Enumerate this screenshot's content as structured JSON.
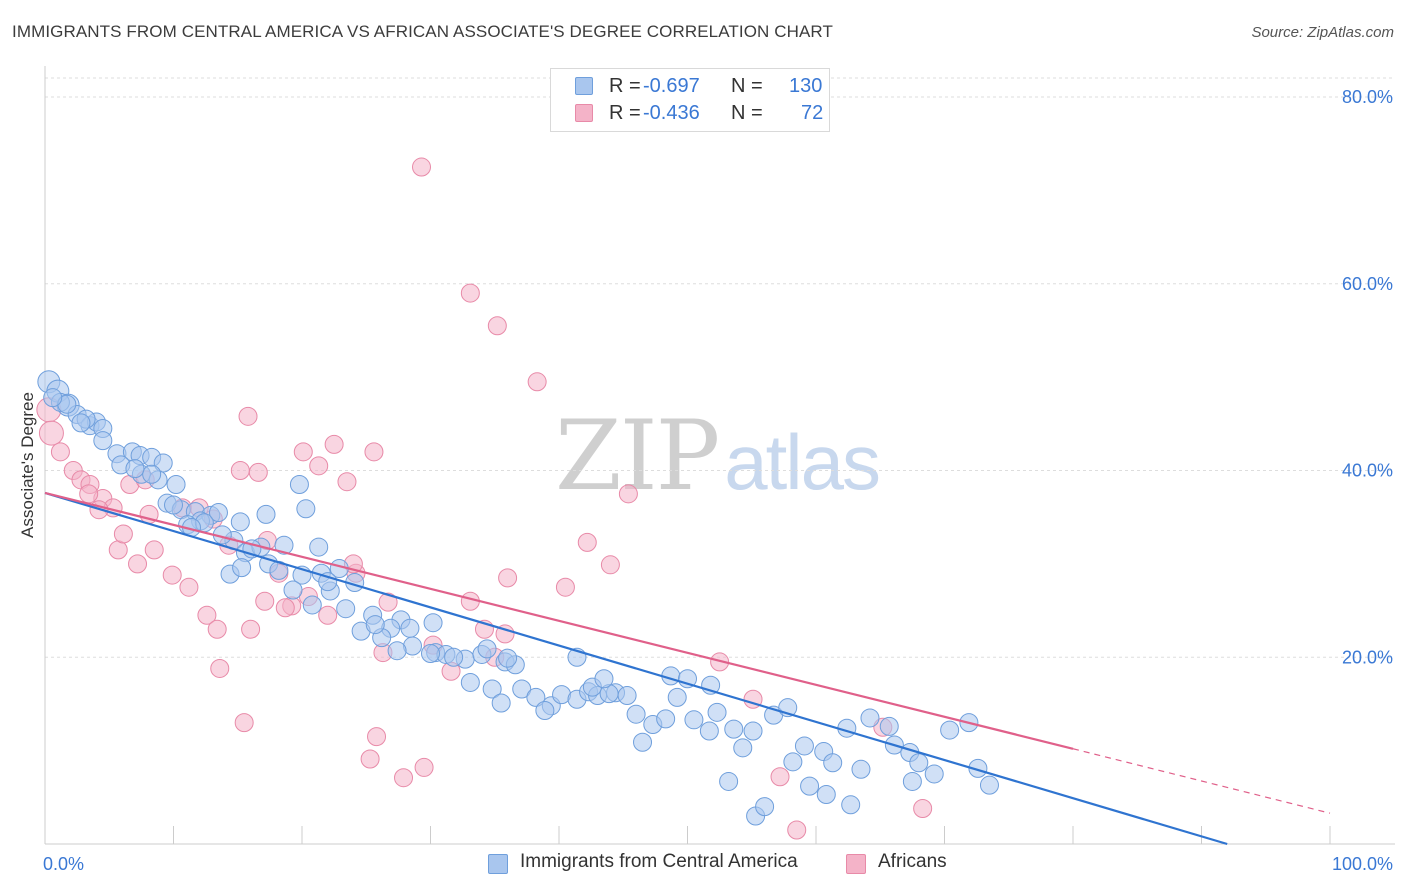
{
  "header": {
    "title": "IMMIGRANTS FROM CENTRAL AMERICA VS AFRICAN ASSOCIATE'S DEGREE CORRELATION CHART",
    "source": "Source: ZipAtlas.com"
  },
  "watermark": {
    "zip": "ZIP",
    "atlas": "atlas"
  },
  "legend_top": {
    "rows": [
      {
        "r_label": "R =",
        "r_value": "-0.697",
        "n_label": "N =",
        "n_value": "130",
        "color": "#a9c6ee"
      },
      {
        "r_label": "R =",
        "r_value": "-0.436",
        "n_label": "N =",
        "n_value": "72",
        "color": "#f4b3c8"
      }
    ]
  },
  "legend_bottom": {
    "items": [
      {
        "label": "Immigrants from Central America",
        "color": "#a9c6ee"
      },
      {
        "label": "Africans",
        "color": "#f4b3c8"
      }
    ]
  },
  "colors": {
    "blue_fill": "#a9c6ee",
    "blue_stroke": "#6f9fdc",
    "blue_line": "#2f74d0",
    "pink_fill": "#f4b3c8",
    "pink_stroke": "#e88aa8",
    "pink_line": "#e0608a",
    "grid": "#dddddd",
    "axis_text": "#3a78d4"
  },
  "chart_data": {
    "type": "scatter",
    "title": "IMMIGRANTS FROM CENTRAL AMERICA VS AFRICAN ASSOCIATE'S DEGREE CORRELATION CHART",
    "xlabel": "",
    "ylabel": "Associate's Degree",
    "xlim": [
      0,
      100
    ],
    "ylim": [
      0,
      80
    ],
    "x_tick_labels": [
      {
        "value": 0,
        "label": "0.0%"
      },
      {
        "value": 100,
        "label": "100.0%"
      }
    ],
    "y_tick_labels": [
      {
        "value": 20,
        "label": "20.0%"
      },
      {
        "value": 40,
        "label": "40.0%"
      },
      {
        "value": 60,
        "label": "60.0%"
      },
      {
        "value": 80,
        "label": "80.0%"
      }
    ],
    "series": [
      {
        "name": "Immigrants from Central America",
        "color": "#a9c6ee",
        "trend": {
          "x": [
            0,
            92
          ],
          "y": [
            37.6,
            0
          ]
        },
        "points": [
          [
            0.3,
            49.5
          ],
          [
            1.0,
            48.5
          ],
          [
            1.8,
            47.0
          ],
          [
            2.5,
            46.0
          ],
          [
            3.5,
            44.8
          ],
          [
            4.0,
            45.2
          ],
          [
            4.5,
            44.5
          ],
          [
            3.2,
            45.5
          ],
          [
            1.2,
            47.3
          ],
          [
            1.7,
            47.1
          ],
          [
            0.6,
            47.8
          ],
          [
            5.6,
            41.8
          ],
          [
            6.8,
            42.0
          ],
          [
            7.4,
            41.6
          ],
          [
            8.3,
            41.4
          ],
          [
            9.2,
            40.8
          ],
          [
            5.9,
            40.6
          ],
          [
            7.5,
            39.6
          ],
          [
            8.8,
            39.0
          ],
          [
            10.2,
            38.5
          ],
          [
            9.5,
            36.5
          ],
          [
            10.6,
            35.8
          ],
          [
            11.7,
            35.6
          ],
          [
            12.9,
            35.2
          ],
          [
            13.5,
            35.5
          ],
          [
            12.1,
            34.6
          ],
          [
            11.1,
            34.2
          ],
          [
            15.2,
            34.5
          ],
          [
            14.7,
            32.5
          ],
          [
            15.6,
            31.2
          ],
          [
            16.8,
            31.8
          ],
          [
            17.4,
            30.0
          ],
          [
            18.2,
            29.3
          ],
          [
            14.4,
            28.9
          ],
          [
            20.0,
            28.8
          ],
          [
            21.5,
            29.0
          ],
          [
            22.9,
            29.5
          ],
          [
            24.1,
            28.0
          ],
          [
            22.2,
            27.1
          ],
          [
            19.3,
            27.2
          ],
          [
            20.8,
            25.6
          ],
          [
            23.4,
            25.2
          ],
          [
            25.5,
            24.5
          ],
          [
            27.7,
            24.0
          ],
          [
            26.9,
            23.1
          ],
          [
            26.2,
            22.1
          ],
          [
            28.6,
            21.2
          ],
          [
            30.4,
            20.5
          ],
          [
            31.2,
            20.3
          ],
          [
            32.7,
            19.8
          ],
          [
            34.0,
            20.3
          ],
          [
            35.8,
            19.5
          ],
          [
            36.6,
            19.2
          ],
          [
            30.0,
            20.4
          ],
          [
            27.4,
            20.7
          ],
          [
            24.6,
            22.8
          ],
          [
            33.1,
            17.3
          ],
          [
            34.8,
            16.6
          ],
          [
            35.5,
            15.1
          ],
          [
            37.1,
            16.6
          ],
          [
            38.2,
            15.7
          ],
          [
            39.4,
            14.8
          ],
          [
            38.9,
            14.3
          ],
          [
            40.2,
            16.0
          ],
          [
            41.4,
            15.5
          ],
          [
            42.3,
            16.3
          ],
          [
            43.0,
            15.9
          ],
          [
            44.4,
            16.2
          ],
          [
            45.3,
            15.9
          ],
          [
            42.6,
            16.8
          ],
          [
            43.9,
            16.1
          ],
          [
            46.0,
            13.9
          ],
          [
            47.3,
            12.8
          ],
          [
            46.5,
            10.9
          ],
          [
            48.3,
            13.4
          ],
          [
            49.2,
            15.7
          ],
          [
            50.5,
            13.3
          ],
          [
            51.7,
            12.1
          ],
          [
            52.3,
            14.1
          ],
          [
            53.6,
            12.3
          ],
          [
            55.1,
            12.1
          ],
          [
            54.3,
            10.3
          ],
          [
            56.7,
            13.8
          ],
          [
            57.8,
            14.6
          ],
          [
            59.1,
            10.5
          ],
          [
            58.2,
            8.8
          ],
          [
            60.6,
            9.9
          ],
          [
            61.3,
            8.7
          ],
          [
            62.4,
            12.4
          ],
          [
            63.5,
            8.0
          ],
          [
            64.2,
            13.5
          ],
          [
            65.7,
            12.6
          ],
          [
            66.1,
            10.6
          ],
          [
            67.3,
            9.8
          ],
          [
            68.0,
            8.7
          ],
          [
            67.5,
            6.7
          ],
          [
            69.2,
            7.5
          ],
          [
            70.4,
            12.2
          ],
          [
            71.9,
            13.0
          ],
          [
            72.6,
            8.1
          ],
          [
            73.5,
            6.3
          ],
          [
            59.5,
            6.2
          ],
          [
            62.7,
            4.2
          ],
          [
            60.8,
            5.3
          ],
          [
            53.2,
            6.7
          ],
          [
            55.3,
            3.0
          ],
          [
            56.0,
            4.0
          ],
          [
            48.7,
            18.0
          ],
          [
            50.0,
            17.7
          ],
          [
            51.8,
            17.0
          ],
          [
            41.4,
            20.0
          ],
          [
            43.5,
            17.7
          ],
          [
            34.4,
            20.9
          ],
          [
            36.0,
            19.9
          ],
          [
            30.2,
            23.7
          ],
          [
            31.8,
            20.0
          ],
          [
            28.4,
            23.1
          ],
          [
            25.7,
            23.5
          ],
          [
            21.3,
            31.8
          ],
          [
            20.3,
            35.9
          ],
          [
            19.8,
            38.5
          ],
          [
            17.2,
            35.3
          ],
          [
            16.1,
            31.6
          ],
          [
            22.0,
            28.1
          ],
          [
            18.6,
            32.0
          ],
          [
            15.3,
            29.6
          ],
          [
            13.8,
            33.1
          ],
          [
            12.4,
            34.4
          ],
          [
            11.4,
            33.9
          ],
          [
            10.0,
            36.3
          ],
          [
            8.3,
            39.6
          ],
          [
            7.0,
            40.2
          ],
          [
            4.5,
            43.2
          ],
          [
            2.8,
            45.1
          ]
        ]
      },
      {
        "name": "Africans",
        "color": "#f4b3c8",
        "trend": {
          "x": [
            0,
            80
          ],
          "y": [
            37.6,
            10.2
          ]
        },
        "trend_dashed": {
          "x": [
            80,
            100
          ],
          "y": [
            10.2,
            3.3
          ]
        },
        "points": [
          [
            0.3,
            46.5
          ],
          [
            0.5,
            44.0
          ],
          [
            1.2,
            42.0
          ],
          [
            2.2,
            40.0
          ],
          [
            2.8,
            39.0
          ],
          [
            3.5,
            38.5
          ],
          [
            4.5,
            37.0
          ],
          [
            5.3,
            36.0
          ],
          [
            6.6,
            38.5
          ],
          [
            7.8,
            39.0
          ],
          [
            3.4,
            37.5
          ],
          [
            4.2,
            35.8
          ],
          [
            5.7,
            31.5
          ],
          [
            7.2,
            30.0
          ],
          [
            8.5,
            31.5
          ],
          [
            9.9,
            28.8
          ],
          [
            11.2,
            27.5
          ],
          [
            12.6,
            24.5
          ],
          [
            13.4,
            23.0
          ],
          [
            10.7,
            36.0
          ],
          [
            12.0,
            36.0
          ],
          [
            13.1,
            34.8
          ],
          [
            14.3,
            32.0
          ],
          [
            15.2,
            40.0
          ],
          [
            16.6,
            39.8
          ],
          [
            15.8,
            45.8
          ],
          [
            17.3,
            32.5
          ],
          [
            18.2,
            29.0
          ],
          [
            19.2,
            25.5
          ],
          [
            20.1,
            42.0
          ],
          [
            21.3,
            40.5
          ],
          [
            22.5,
            42.8
          ],
          [
            23.5,
            38.8
          ],
          [
            25.6,
            42.0
          ],
          [
            24.2,
            29.0
          ],
          [
            22.0,
            24.5
          ],
          [
            20.5,
            26.5
          ],
          [
            18.7,
            25.3
          ],
          [
            17.1,
            26.0
          ],
          [
            16.0,
            23.0
          ],
          [
            13.6,
            18.8
          ],
          [
            15.5,
            13.0
          ],
          [
            26.3,
            20.5
          ],
          [
            25.3,
            9.1
          ],
          [
            25.8,
            11.5
          ],
          [
            27.9,
            7.1
          ],
          [
            29.5,
            8.2
          ],
          [
            30.2,
            21.3
          ],
          [
            31.6,
            18.5
          ],
          [
            33.1,
            26.0
          ],
          [
            34.2,
            23.0
          ],
          [
            35.0,
            20.0
          ],
          [
            35.8,
            22.5
          ],
          [
            36.0,
            28.5
          ],
          [
            29.3,
            72.5
          ],
          [
            33.1,
            59.0
          ],
          [
            35.2,
            55.5
          ],
          [
            38.3,
            49.5
          ],
          [
            40.5,
            27.5
          ],
          [
            42.2,
            32.3
          ],
          [
            44.0,
            29.9
          ],
          [
            45.4,
            37.5
          ],
          [
            52.5,
            19.5
          ],
          [
            55.1,
            15.5
          ],
          [
            57.2,
            7.2
          ],
          [
            58.5,
            1.5
          ],
          [
            65.2,
            12.5
          ],
          [
            68.3,
            3.8
          ],
          [
            24.0,
            30.0
          ],
          [
            26.7,
            25.9
          ],
          [
            6.1,
            33.2
          ],
          [
            8.1,
            35.3
          ]
        ]
      }
    ]
  }
}
